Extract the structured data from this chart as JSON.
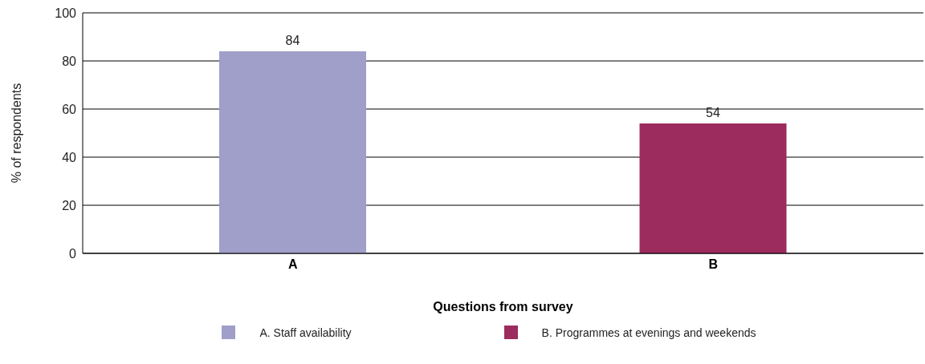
{
  "chart_data": {
    "type": "bar",
    "xlabel": "Questions from survey",
    "ylabel": "% of respondents",
    "categories": [
      "A",
      "B"
    ],
    "stacked": true,
    "series": [
      {
        "name": "A. Staff availability",
        "color": "#a09fc9",
        "values": [
          84,
          null
        ]
      },
      {
        "name": "B. Programmes at evenings and weekends",
        "color": "#9c2b5e",
        "values": [
          null,
          54
        ]
      }
    ],
    "ylim": [
      0,
      100
    ],
    "yticks": [
      0,
      20,
      40,
      60,
      80,
      100
    ],
    "grid": "y",
    "data_labels": true,
    "legend": "bottom"
  }
}
